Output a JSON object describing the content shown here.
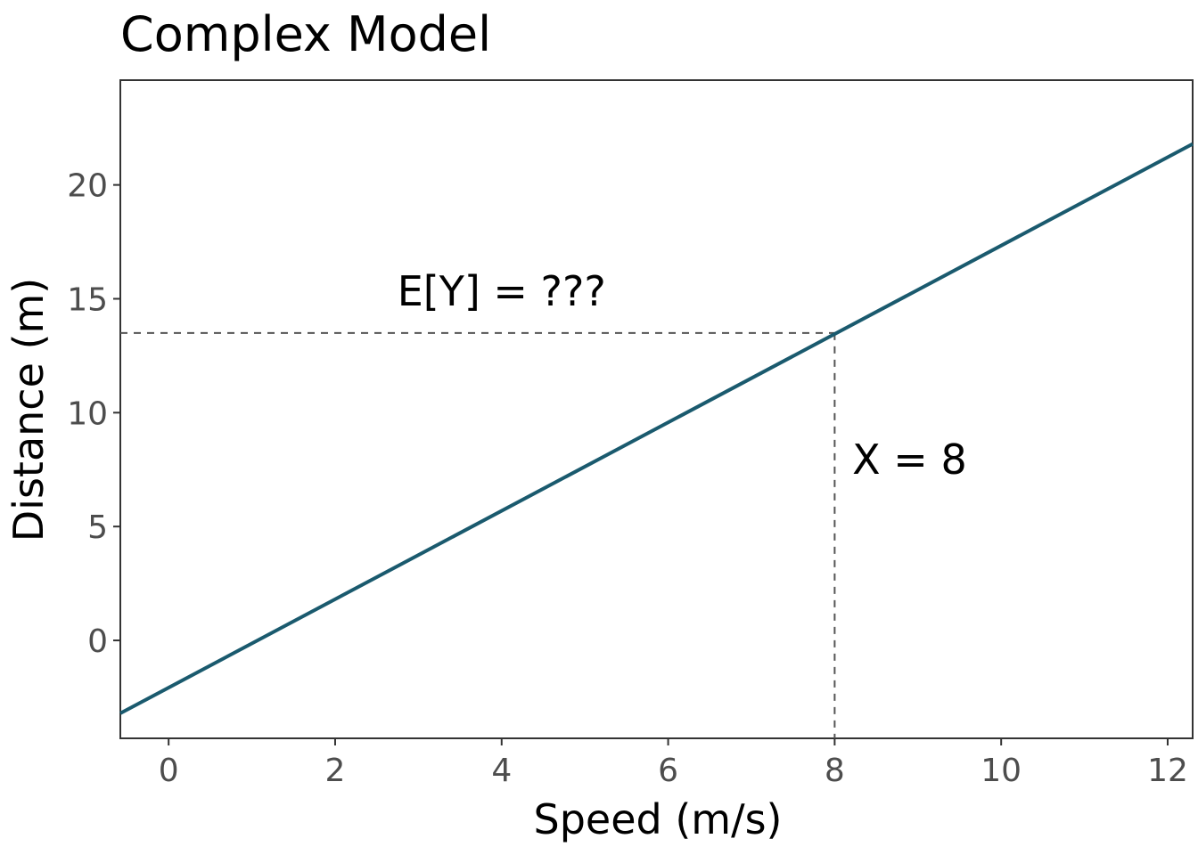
{
  "chart_data": {
    "type": "line",
    "title": "Complex Model",
    "xlabel": "Speed (m/s)",
    "ylabel": "Distance (m)",
    "xlim": [
      -0.58,
      12.3
    ],
    "ylim": [
      -4.3,
      24.6
    ],
    "x_ticks": [
      0,
      2,
      4,
      6,
      8,
      10,
      12
    ],
    "y_ticks": [
      0,
      5,
      10,
      15,
      20
    ],
    "grid": false,
    "line_color": "#1a5a6e",
    "series": [
      {
        "x": [
          -0.58,
          12.3
        ],
        "y": [
          -3.2,
          21.8
        ]
      }
    ],
    "reference_lines": {
      "x": 8,
      "y": 13.5
    },
    "annotations": [
      {
        "text": "E[Y] = ???",
        "x": 4,
        "y": 15.2
      },
      {
        "text": "X = 8",
        "x": 8.9,
        "y": 7.8
      }
    ]
  }
}
